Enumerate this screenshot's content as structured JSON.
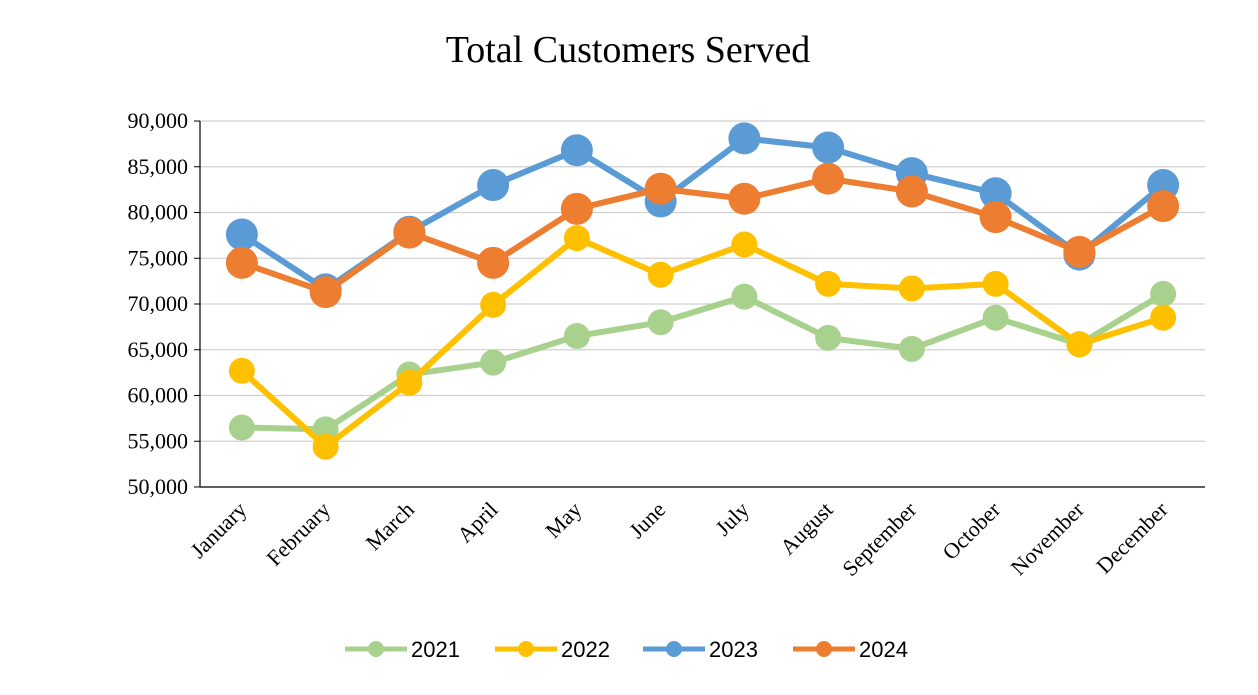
{
  "chart_data": {
    "type": "line",
    "title": "Total Customers Served",
    "xlabel": "",
    "ylabel": "",
    "ylim": [
      50000,
      90000
    ],
    "y_ticks": [
      "50,000",
      "55,000",
      "60,000",
      "65,000",
      "70,000",
      "75,000",
      "80,000",
      "85,000",
      "90,000"
    ],
    "categories": [
      "January",
      "February",
      "March",
      "April",
      "May",
      "June",
      "July",
      "August",
      "September",
      "October",
      "November",
      "December"
    ],
    "grid": true,
    "legend_position": "bottom",
    "series": [
      {
        "name": "2021",
        "color": "#A9D18E",
        "values": [
          56500,
          56300,
          62300,
          63600,
          66500,
          68000,
          70800,
          66300,
          65100,
          68500,
          65600,
          71100
        ]
      },
      {
        "name": "2022",
        "color": "#FFC000",
        "values": [
          62700,
          54400,
          61400,
          69900,
          77200,
          73200,
          76500,
          72200,
          71700,
          72200,
          65600,
          68500
        ]
      },
      {
        "name": "2023",
        "color": "#5B9BD5",
        "values": [
          77600,
          71600,
          77900,
          83000,
          86800,
          81200,
          88100,
          87100,
          84300,
          82100,
          75400,
          83000
        ]
      },
      {
        "name": "2024",
        "color": "#ED7D31",
        "values": [
          74500,
          71300,
          77800,
          74500,
          80400,
          82600,
          81500,
          83700,
          82300,
          79500,
          75700,
          80700
        ]
      }
    ]
  }
}
